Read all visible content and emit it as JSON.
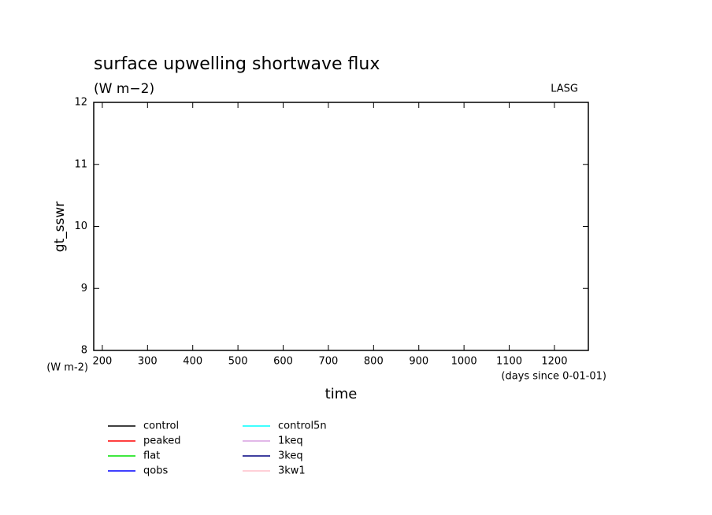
{
  "chart_data": {
    "type": "line",
    "title": "surface upwelling shortwave flux",
    "subtitle": "(W m−2)",
    "annotation": "LASG",
    "ylabel": "gt_sswr",
    "y_unit": "(W m-2)",
    "xlabel": "time",
    "x_unit": "(days since 0-01-01)",
    "x": [],
    "xlim": [
      181,
      1275
    ],
    "ylim": [
      8,
      12
    ],
    "xticks": [
      200,
      300,
      400,
      500,
      600,
      700,
      800,
      900,
      1000,
      1100,
      1200
    ],
    "yticks": [
      8,
      9,
      10,
      11,
      12
    ],
    "series": [
      {
        "name": "control",
        "color": "#000000",
        "values": []
      },
      {
        "name": "peaked",
        "color": "#ff0000",
        "values": []
      },
      {
        "name": "flat",
        "color": "#00e000",
        "values": []
      },
      {
        "name": "qobs",
        "color": "#0000ff",
        "values": []
      },
      {
        "name": "control5n",
        "color": "#00ffff",
        "values": []
      },
      {
        "name": "1keq",
        "color": "#d8a0e0",
        "values": []
      },
      {
        "name": "3keq",
        "color": "#000080",
        "values": []
      },
      {
        "name": "3kw1",
        "color": "#ffc0cb",
        "values": []
      }
    ]
  }
}
